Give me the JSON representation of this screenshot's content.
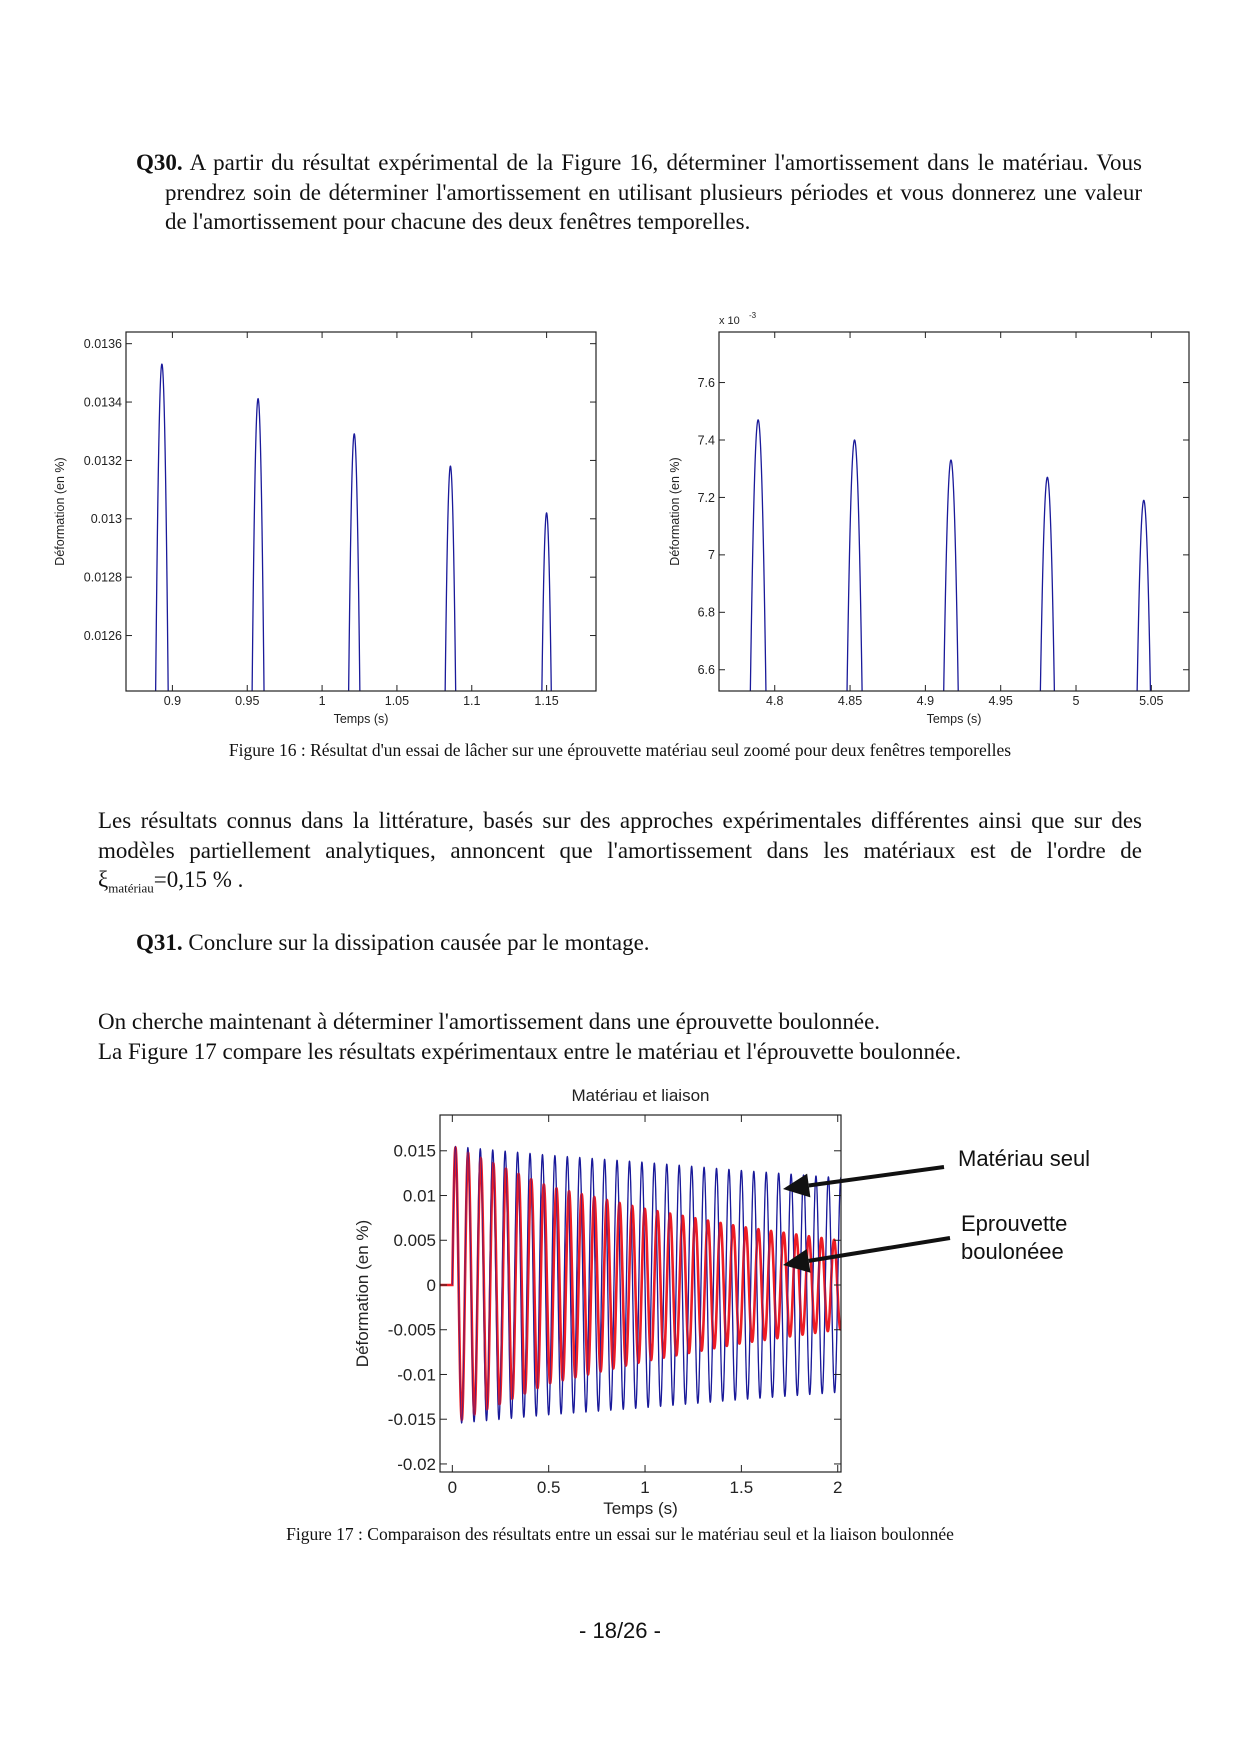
{
  "q30": {
    "label": "Q30.",
    "text_first": " A partir du résultat expérimental de la Figure 16, déterminer l'amortissement dans le matériau. Vous prendrez soin de déterminer l'amortissement en utilisant plusieurs périodes et vous donnerez une valeur de l'amortissement pour chacune des deux fenêtres temporelles."
  },
  "figure16_caption": "Figure 16 : Résultat d'un essai de lâcher sur une éprouvette matériau seul zoomé pour deux fenêtres temporelles",
  "literature_paragraph": {
    "text": "Les résultats connus dans la littérature, basés sur des approches expérimentales différentes ainsi que sur des modèles partiellement analytiques, annoncent que l'amortissement dans les matériaux est de l'ordre de ",
    "symbol": "ξ",
    "subscript": "matériau",
    "value": "=0,15 %",
    "end": " ."
  },
  "q31": {
    "label": "Q31.",
    "text": " Conclure sur la dissipation causée par le montage."
  },
  "intro_lines": [
    "On cherche maintenant à déterminer l'amortissement dans une éprouvette boulonnée.",
    "La Figure 17 compare les résultats expérimentaux entre le matériau et l'éprouvette boulonnée."
  ],
  "figure17_caption": "Figure 17 : Comparaison des résultats entre un essai sur le matériau seul et la liaison boulonnée",
  "page_number": "- 18/26 -",
  "chart_data": [
    {
      "type": "line",
      "title": "",
      "xlabel": "Temps (s)",
      "ylabel": "Déformation (en %)",
      "xlim": [
        0.869,
        1.183
      ],
      "ylim": [
        0.01241,
        0.01364
      ],
      "xticks": [
        "0.9",
        "0.95",
        "1",
        "1.05",
        "1.1",
        "1.15"
      ],
      "yticks": [
        "0.0126",
        "0.0128",
        "0.013",
        "0.0132",
        "0.0134",
        "0.0136"
      ],
      "grid": false,
      "series": [
        {
          "color": "#1a1a9a",
          "peaks_t": [
            0.893,
            0.958,
            1.022,
            1.086,
            1.15
          ],
          "peaks_y": [
            0.01353,
            0.01341,
            0.01329,
            0.01318,
            0.01302
          ]
        }
      ]
    },
    {
      "type": "line",
      "title": "",
      "xlabel": "Temps (s)",
      "ylabel": "Déformation (en %)",
      "y_multiplier": "x 10",
      "y_multiplier_exp": "-3",
      "xlim": [
        4.763,
        5.075
      ],
      "ylim": [
        6.526,
        7.776
      ],
      "xticks": [
        "4.8",
        "4.85",
        "4.9",
        "4.95",
        "5",
        "5.05"
      ],
      "yticks": [
        "6.6",
        "6.8",
        "7",
        "7.2",
        "7.4",
        "7.6"
      ],
      "grid": false,
      "series": [
        {
          "color": "#1a1a9a",
          "peaks_t": [
            4.789,
            4.853,
            4.917,
            4.981,
            5.045
          ],
          "peaks_y": [
            7.47,
            7.4,
            7.33,
            7.27,
            7.19
          ]
        }
      ]
    },
    {
      "type": "line",
      "title": "Matériau et liaison",
      "xlabel": "Temps (s)",
      "ylabel": "Déformation (en %)",
      "xlim": [
        -0.064,
        2.017
      ],
      "ylim": [
        -0.0209,
        0.019
      ],
      "xticks": [
        "0",
        "0.5",
        "1",
        "1.5",
        "2"
      ],
      "yticks": [
        "-0.02",
        "-0.015",
        "-0.01",
        "-0.005",
        "0",
        "0.005",
        "0.01",
        "0.015"
      ],
      "grid": false,
      "frequency_hz": 15.5,
      "series": [
        {
          "name": "Matériau seul",
          "color": "#1a1a9a",
          "envelope_t": [
            0,
            0.5,
            1,
            1.5,
            2
          ],
          "envelope_y": [
            0.0155,
            0.0145,
            0.0137,
            0.0128,
            0.012
          ]
        },
        {
          "name": "Eprouvette boulonéee",
          "color": "#ee1c24",
          "envelope_t": [
            0,
            0.5,
            1,
            1.5,
            2
          ],
          "envelope_y": [
            0.0155,
            0.011,
            0.0085,
            0.0065,
            0.005
          ]
        }
      ],
      "annotations": [
        "Matériau seul",
        "Eprouvette",
        "boulonéee"
      ]
    }
  ]
}
